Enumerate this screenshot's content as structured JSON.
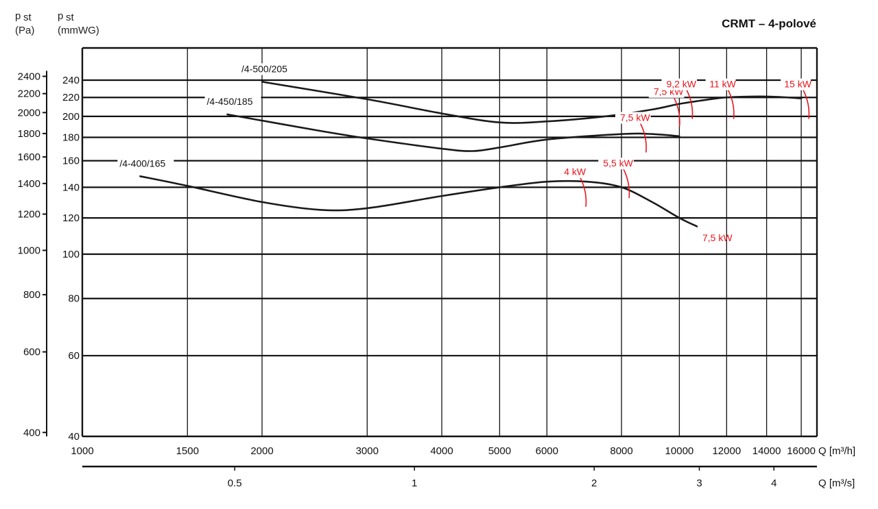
{
  "chart_data": {
    "type": "line",
    "title": "CRMT – 4-polové",
    "y_left_label": {
      "symbol": "p",
      "sub": "st",
      "unit": "(Pa)"
    },
    "y_right_label": {
      "symbol": "p",
      "sub": "st",
      "unit": "(mmWG)"
    },
    "x_label": "Q [m³/h]",
    "x2_label": "Q [m³/s]",
    "x_scale": "log",
    "y_scale": "log",
    "xlim": [
      1000,
      17000
    ],
    "ylim_mmwg": [
      40,
      260
    ],
    "x_ticks": [
      1000,
      1500,
      2000,
      3000,
      4000,
      5000,
      6000,
      8000,
      10000,
      12000,
      14000,
      16000
    ],
    "x2_ticks": [
      {
        "label": "0.5",
        "value": 0.5
      },
      {
        "label": "1",
        "value": 1
      },
      {
        "label": "2",
        "value": 2
      },
      {
        "label": "3",
        "value": 3
      },
      {
        "label": "4",
        "value": 4
      }
    ],
    "y_mmwg_ticks": [
      40,
      60,
      80,
      100,
      120,
      140,
      160,
      180,
      200,
      220,
      240
    ],
    "y_pa_ticks": [
      400,
      600,
      800,
      1000,
      1200,
      1400,
      1600,
      1800,
      2000,
      2200,
      2400
    ],
    "grid": true,
    "series": [
      {
        "name": "/4-500/205",
        "points": [
          [
            2000,
            238
          ],
          [
            3000,
            218
          ],
          [
            4000,
            203
          ],
          [
            5000,
            194
          ],
          [
            6000,
            195
          ],
          [
            7500,
            200
          ],
          [
            9000,
            207
          ],
          [
            10000,
            213
          ],
          [
            11000,
            217
          ],
          [
            12000,
            220
          ],
          [
            14000,
            221
          ],
          [
            16000,
            219
          ]
        ]
      },
      {
        "name": "/4-450/185",
        "points": [
          [
            1750,
            202
          ],
          [
            2500,
            186
          ],
          [
            3000,
            179
          ],
          [
            4000,
            170
          ],
          [
            4500,
            168
          ],
          [
            5000,
            171
          ],
          [
            6000,
            178
          ],
          [
            8000,
            183
          ],
          [
            9000,
            183
          ],
          [
            10000,
            181
          ]
        ]
      },
      {
        "name": "/4-400/165",
        "points": [
          [
            1250,
            148
          ],
          [
            1500,
            141
          ],
          [
            2000,
            130
          ],
          [
            2500,
            125
          ],
          [
            3000,
            126
          ],
          [
            4000,
            134
          ],
          [
            5000,
            140
          ],
          [
            6000,
            144
          ],
          [
            7000,
            144
          ],
          [
            8000,
            140
          ],
          [
            9000,
            130
          ],
          [
            10000,
            120
          ],
          [
            10700,
            115
          ]
        ]
      }
    ],
    "power_markers": [
      {
        "label": "4 kW",
        "q": 6900,
        "p": 137
      },
      {
        "label": "5,5 kW",
        "q": 8150,
        "p": 143
      },
      {
        "label": "7,5 kW",
        "q": 8700,
        "p": 180
      },
      {
        "label": "7,5 kW",
        "q": 9900,
        "p": 205
      },
      {
        "label": "9,2 kW",
        "q": 10400,
        "p": 213
      },
      {
        "label": "11 kW",
        "q": 12200,
        "p": 213
      },
      {
        "label": "15 kW",
        "q": 16300,
        "p": 213
      },
      {
        "label": "7,5 kW",
        "q": 10700,
        "p": 116
      }
    ],
    "colors": {
      "curve": "#1a1a1a",
      "grid": "#111111",
      "power": "#e8141c"
    }
  }
}
